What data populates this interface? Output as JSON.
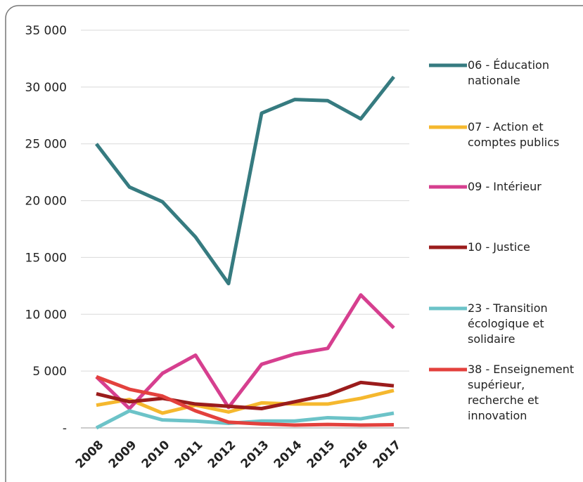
{
  "chart_data": {
    "type": "line",
    "categories": [
      "2008",
      "2009",
      "2010",
      "2011",
      "2012",
      "2013",
      "2014",
      "2015",
      "2016",
      "2017"
    ],
    "ylim": [
      0,
      35000
    ],
    "yticks": [
      {
        "value": 0,
        "label": "-"
      },
      {
        "value": 5000,
        "label": "5 000"
      },
      {
        "value": 10000,
        "label": "10 000"
      },
      {
        "value": 15000,
        "label": "15 000"
      },
      {
        "value": 20000,
        "label": "20 000"
      },
      {
        "value": 25000,
        "label": "25 000"
      },
      {
        "value": 30000,
        "label": "30 000"
      },
      {
        "value": 35000,
        "label": "35 000"
      }
    ],
    "grid": true,
    "legend": "right",
    "series": [
      {
        "name": "06 - Éducation nationale",
        "color": "#367b80",
        "values": [
          25000,
          21200,
          19900,
          16800,
          12700,
          27700,
          28900,
          28800,
          27200,
          30900
        ]
      },
      {
        "name": "07 - Action et comptes publics",
        "color": "#f5b82e",
        "values": [
          2000,
          2500,
          1300,
          2000,
          1400,
          2200,
          2100,
          2100,
          2600,
          3300
        ]
      },
      {
        "name": "09 - Intérieur",
        "color": "#d63f8f",
        "values": [
          4500,
          1700,
          4800,
          6400,
          1800,
          5600,
          6500,
          7000,
          11700,
          8800
        ]
      },
      {
        "name": "10 - Justice",
        "color": "#9b1c1c",
        "values": [
          3000,
          2300,
          2600,
          2100,
          1900,
          1700,
          2300,
          2900,
          4000,
          3700
        ]
      },
      {
        "name": "23 - Transition écologique et solidaire",
        "color": "#6cc3c8",
        "values": [
          0,
          1500,
          700,
          600,
          400,
          600,
          600,
          900,
          800,
          1300
        ]
      },
      {
        "name": "38 - Enseignement supérieur, recherche et innovation",
        "color": "#e3413d",
        "values": [
          4500,
          3400,
          2800,
          1500,
          500,
          350,
          250,
          300,
          250,
          280
        ]
      }
    ]
  }
}
